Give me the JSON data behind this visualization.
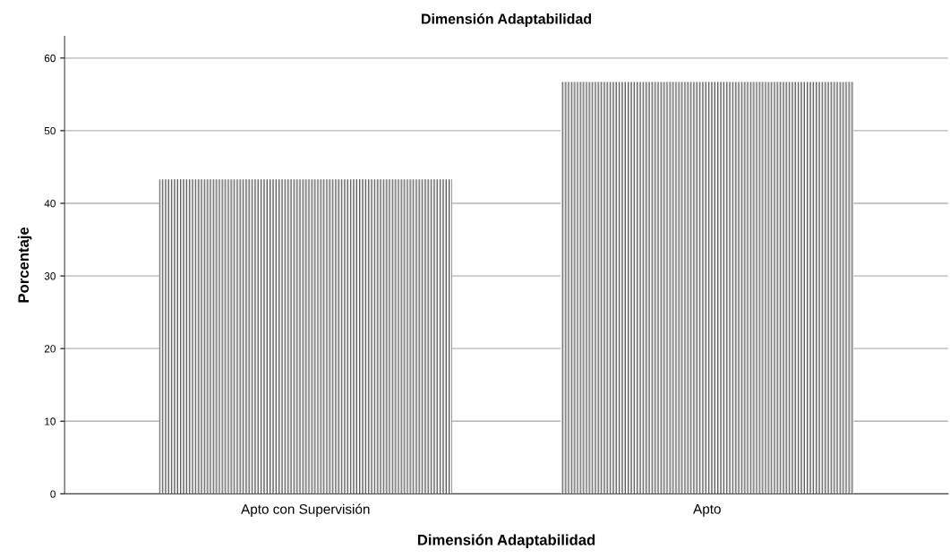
{
  "chart_data": {
    "type": "bar",
    "title": "Dimensión Adaptabilidad",
    "xlabel": "Dimensión Adaptabilidad",
    "ylabel": "Porcentaje",
    "categories": [
      "Apto con Supervisión",
      "Apto"
    ],
    "values": [
      43.3,
      56.7
    ],
    "color": "#5a5a5a",
    "ylim": [
      0,
      63
    ],
    "yticks": [
      0,
      10,
      20,
      30,
      40,
      50,
      60
    ],
    "grid": "y"
  }
}
